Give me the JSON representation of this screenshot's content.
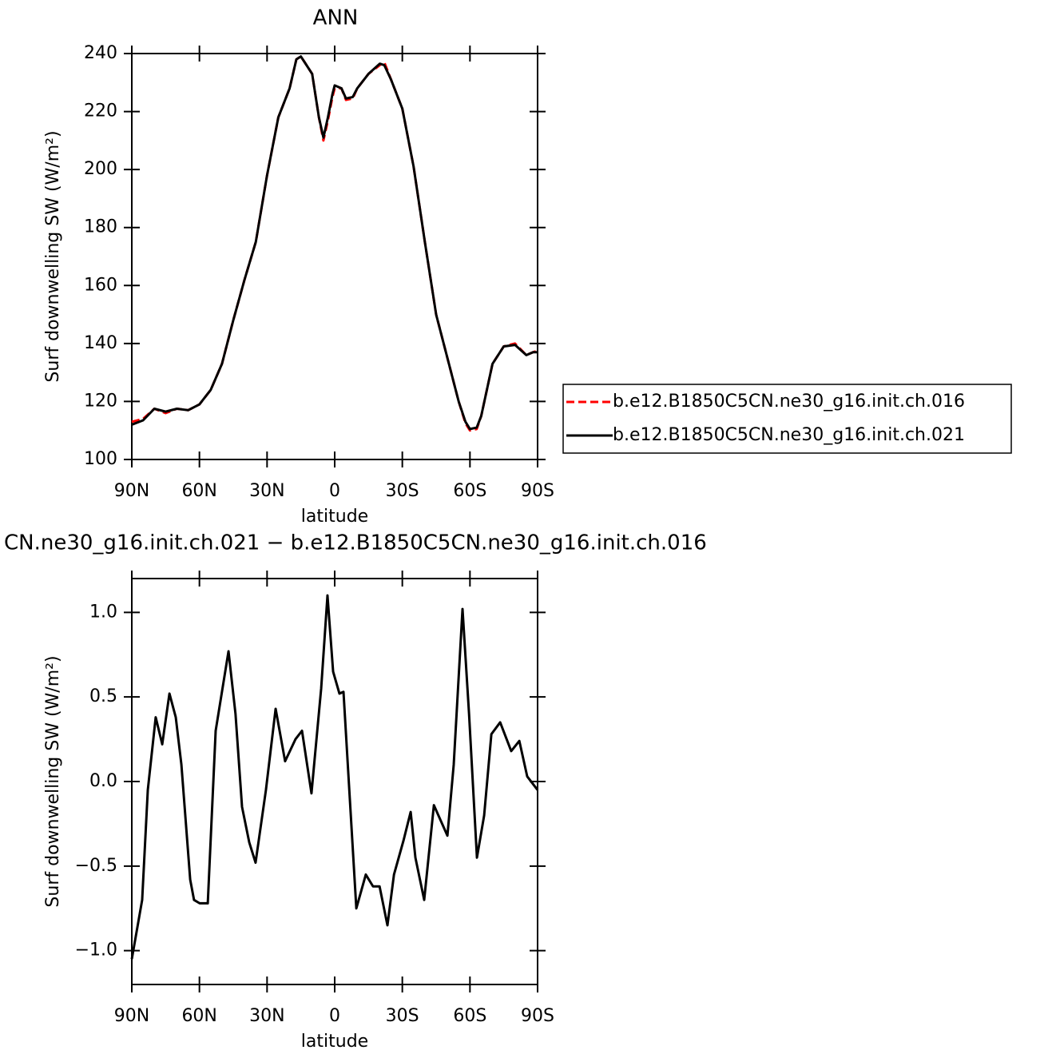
{
  "chart_data": [
    {
      "type": "line",
      "title": "ANN",
      "xlabel": "latitude",
      "ylabel": "Surf downwelling SW (W/m²)",
      "x": [
        90,
        85,
        80,
        75,
        70,
        65,
        60,
        55,
        50,
        45,
        40,
        35,
        30,
        25,
        20,
        17,
        15,
        10,
        7,
        5,
        3,
        1,
        0,
        -3,
        -5,
        -8,
        -10,
        -15,
        -20,
        -22,
        -25,
        -30,
        -35,
        -40,
        -45,
        -50,
        -55,
        -58,
        -60,
        -63,
        -65,
        -70,
        -75,
        -80,
        -85,
        -88,
        -90
      ],
      "series": [
        {
          "name": "b.e12.B1850C5CN.ne30_g16.init.ch.016",
          "color": "#ff0000",
          "dash": true,
          "values": [
            113,
            114,
            117.5,
            116,
            117.5,
            117,
            119,
            124,
            133,
            148,
            162,
            175,
            198,
            218,
            228,
            238,
            239,
            233,
            218,
            210,
            217,
            225,
            228,
            228,
            224,
            224.5,
            228,
            233,
            236,
            237,
            231,
            221,
            201,
            175,
            150,
            135,
            120,
            112.5,
            110,
            110.5,
            115,
            133,
            139,
            140,
            136,
            137,
            137.5
          ]
        },
        {
          "name": "b.e12.B1850C5CN.ne30_g16.init.ch.021",
          "color": "#000000",
          "dash": false,
          "values": [
            112,
            113.5,
            117.5,
            116.5,
            117.5,
            117,
            119,
            124,
            133,
            148,
            162,
            175,
            198,
            218,
            228,
            238,
            239,
            233,
            218,
            211,
            218,
            226,
            229,
            228,
            224.5,
            225,
            228,
            233,
            236.5,
            236,
            231,
            221,
            201,
            175,
            150,
            135,
            120,
            113,
            110.5,
            111,
            115,
            133,
            139,
            139.5,
            136,
            137,
            137
          ]
        }
      ],
      "xlim": [
        90,
        -90
      ],
      "xticks": [
        {
          "value": 90,
          "label": "90N"
        },
        {
          "value": 60,
          "label": "60N"
        },
        {
          "value": 30,
          "label": "30N"
        },
        0,
        {
          "value": -30,
          "label": "30S"
        },
        {
          "value": -60,
          "label": "60S"
        },
        {
          "value": -90,
          "label": "90S"
        }
      ],
      "ylim": [
        100,
        240
      ],
      "yticks": [
        100,
        120,
        140,
        160,
        180,
        200,
        220,
        240
      ],
      "legend": "right"
    },
    {
      "type": "line",
      "title": "CN.ne30_g16.init.ch.021 − b.e12.B1850C5CN.ne30_g16.init.ch.016",
      "xlabel": "latitude",
      "ylabel": "Surf downwelling SW (W/m²)",
      "x": [
        90,
        85.4,
        82.9,
        79.4,
        76.5,
        73.3,
        70.5,
        68,
        64.1,
        62.4,
        59.9,
        56.3,
        52.8,
        47.1,
        44,
        41.1,
        37.9,
        35.1,
        30.5,
        26.2,
        22,
        17.4,
        14.5,
        10.3,
        6,
        3.2,
        0.7,
        -2.1,
        -3.9,
        -6.7,
        -9.6,
        -13.8,
        -17,
        -19.9,
        -23.4,
        -26.3,
        -30.5,
        -33.7,
        -35.8,
        -39.7,
        -44,
        -50,
        -52.8,
        -56.7,
        -59.6,
        -63.1,
        -66.3,
        -69.5,
        -73.4,
        -78.3,
        -81.9,
        -85.4,
        -90
      ],
      "values": [
        -1.05,
        -0.7,
        -0.05,
        0.38,
        0.22,
        0.52,
        0.38,
        0.1,
        -0.58,
        -0.7,
        -0.72,
        -0.72,
        0.3,
        0.77,
        0.4,
        -0.15,
        -0.36,
        -0.48,
        -0.05,
        0.43,
        0.12,
        0.25,
        0.3,
        -0.07,
        0.55,
        1.1,
        0.65,
        0.52,
        0.53,
        -0.1,
        -0.75,
        -0.55,
        -0.62,
        -0.62,
        -0.85,
        -0.55,
        -0.35,
        -0.18,
        -0.45,
        -0.7,
        -0.14,
        -0.32,
        0.1,
        1.02,
        0.4,
        -0.45,
        -0.2,
        0.28,
        0.35,
        0.18,
        0.24,
        0.03,
        -0.05
      ],
      "color": "#000000",
      "xlim": [
        90,
        -90
      ],
      "xticks": [
        {
          "value": 90,
          "label": "90N"
        },
        {
          "value": 60,
          "label": "60N"
        },
        {
          "value": 30,
          "label": "30N"
        },
        0,
        {
          "value": -30,
          "label": "30S"
        },
        {
          "value": -60,
          "label": "60S"
        },
        {
          "value": -90,
          "label": "90S"
        }
      ],
      "ylim": [
        -1.2,
        1.2
      ],
      "yticks": [
        {
          "value": -1,
          "label": "−1.0"
        },
        {
          "value": -0.5,
          "label": "−0.5"
        },
        {
          "value": 0,
          "label": "0.0"
        },
        0.5,
        {
          "value": 1,
          "label": "1.0"
        }
      ]
    }
  ]
}
